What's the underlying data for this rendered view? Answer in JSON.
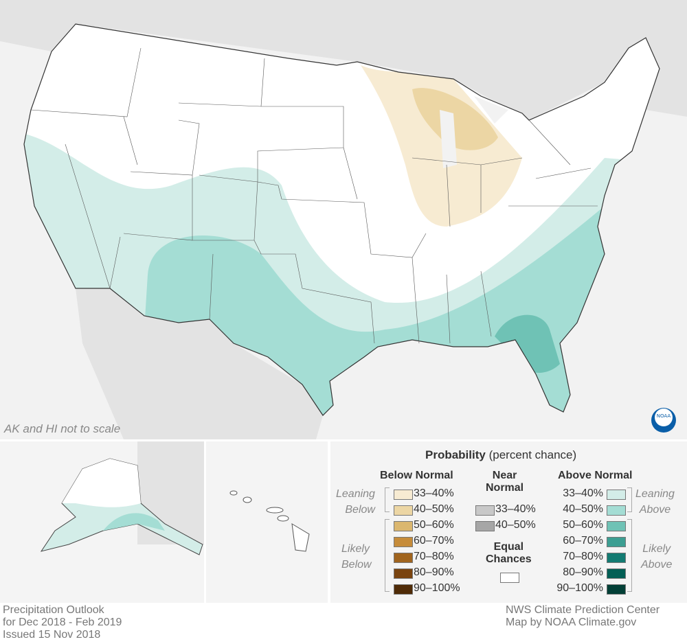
{
  "map": {
    "note": "AK and HI not to scale",
    "logo": "NOAA"
  },
  "legend": {
    "title_bold": "Probability",
    "title_rest": "(percent chance)",
    "below": {
      "header": "Below Normal",
      "leaning": [
        "Leaning",
        "Below"
      ],
      "likely": [
        "Likely",
        "Below"
      ],
      "items": [
        {
          "label": "33–40%",
          "color": "#f7ebd2"
        },
        {
          "label": "40–50%",
          "color": "#ecd6a4"
        },
        {
          "label": "50–60%",
          "color": "#dbb76f"
        },
        {
          "label": "60–70%",
          "color": "#c68c3a"
        },
        {
          "label": "70–80%",
          "color": "#a0641e"
        },
        {
          "label": "80–90%",
          "color": "#7a4410"
        },
        {
          "label": "90–100%",
          "color": "#4f2b07"
        }
      ]
    },
    "near": {
      "header": [
        "Near",
        "Normal"
      ],
      "items": [
        {
          "label": "33–40%",
          "color": "#c8c8c8"
        },
        {
          "label": "40–50%",
          "color": "#a6a6a6"
        }
      ]
    },
    "equal": {
      "header": [
        "Equal",
        "Chances"
      ],
      "color": "#ffffff"
    },
    "above": {
      "header": "Above Normal",
      "leaning": [
        "Leaning",
        "Above"
      ],
      "likely": [
        "Likely",
        "Above"
      ],
      "items": [
        {
          "label": "33–40%",
          "color": "#d3ede8"
        },
        {
          "label": "40–50%",
          "color": "#a4ddd4"
        },
        {
          "label": "50–60%",
          "color": "#6fc2b5"
        },
        {
          "label": "60–70%",
          "color": "#3c9e92"
        },
        {
          "label": "70–80%",
          "color": "#137b72"
        },
        {
          "label": "80–90%",
          "color": "#035f55"
        },
        {
          "label": "90–100%",
          "color": "#023f36"
        }
      ]
    }
  },
  "footer": {
    "left": [
      "Precipitation Outlook",
      "for Dec 2018 - Feb 2019",
      "Issued 15 Nov 2018"
    ],
    "right": [
      "NWS Climate Prediction Center",
      "Map by NOAA Climate.gov"
    ]
  }
}
